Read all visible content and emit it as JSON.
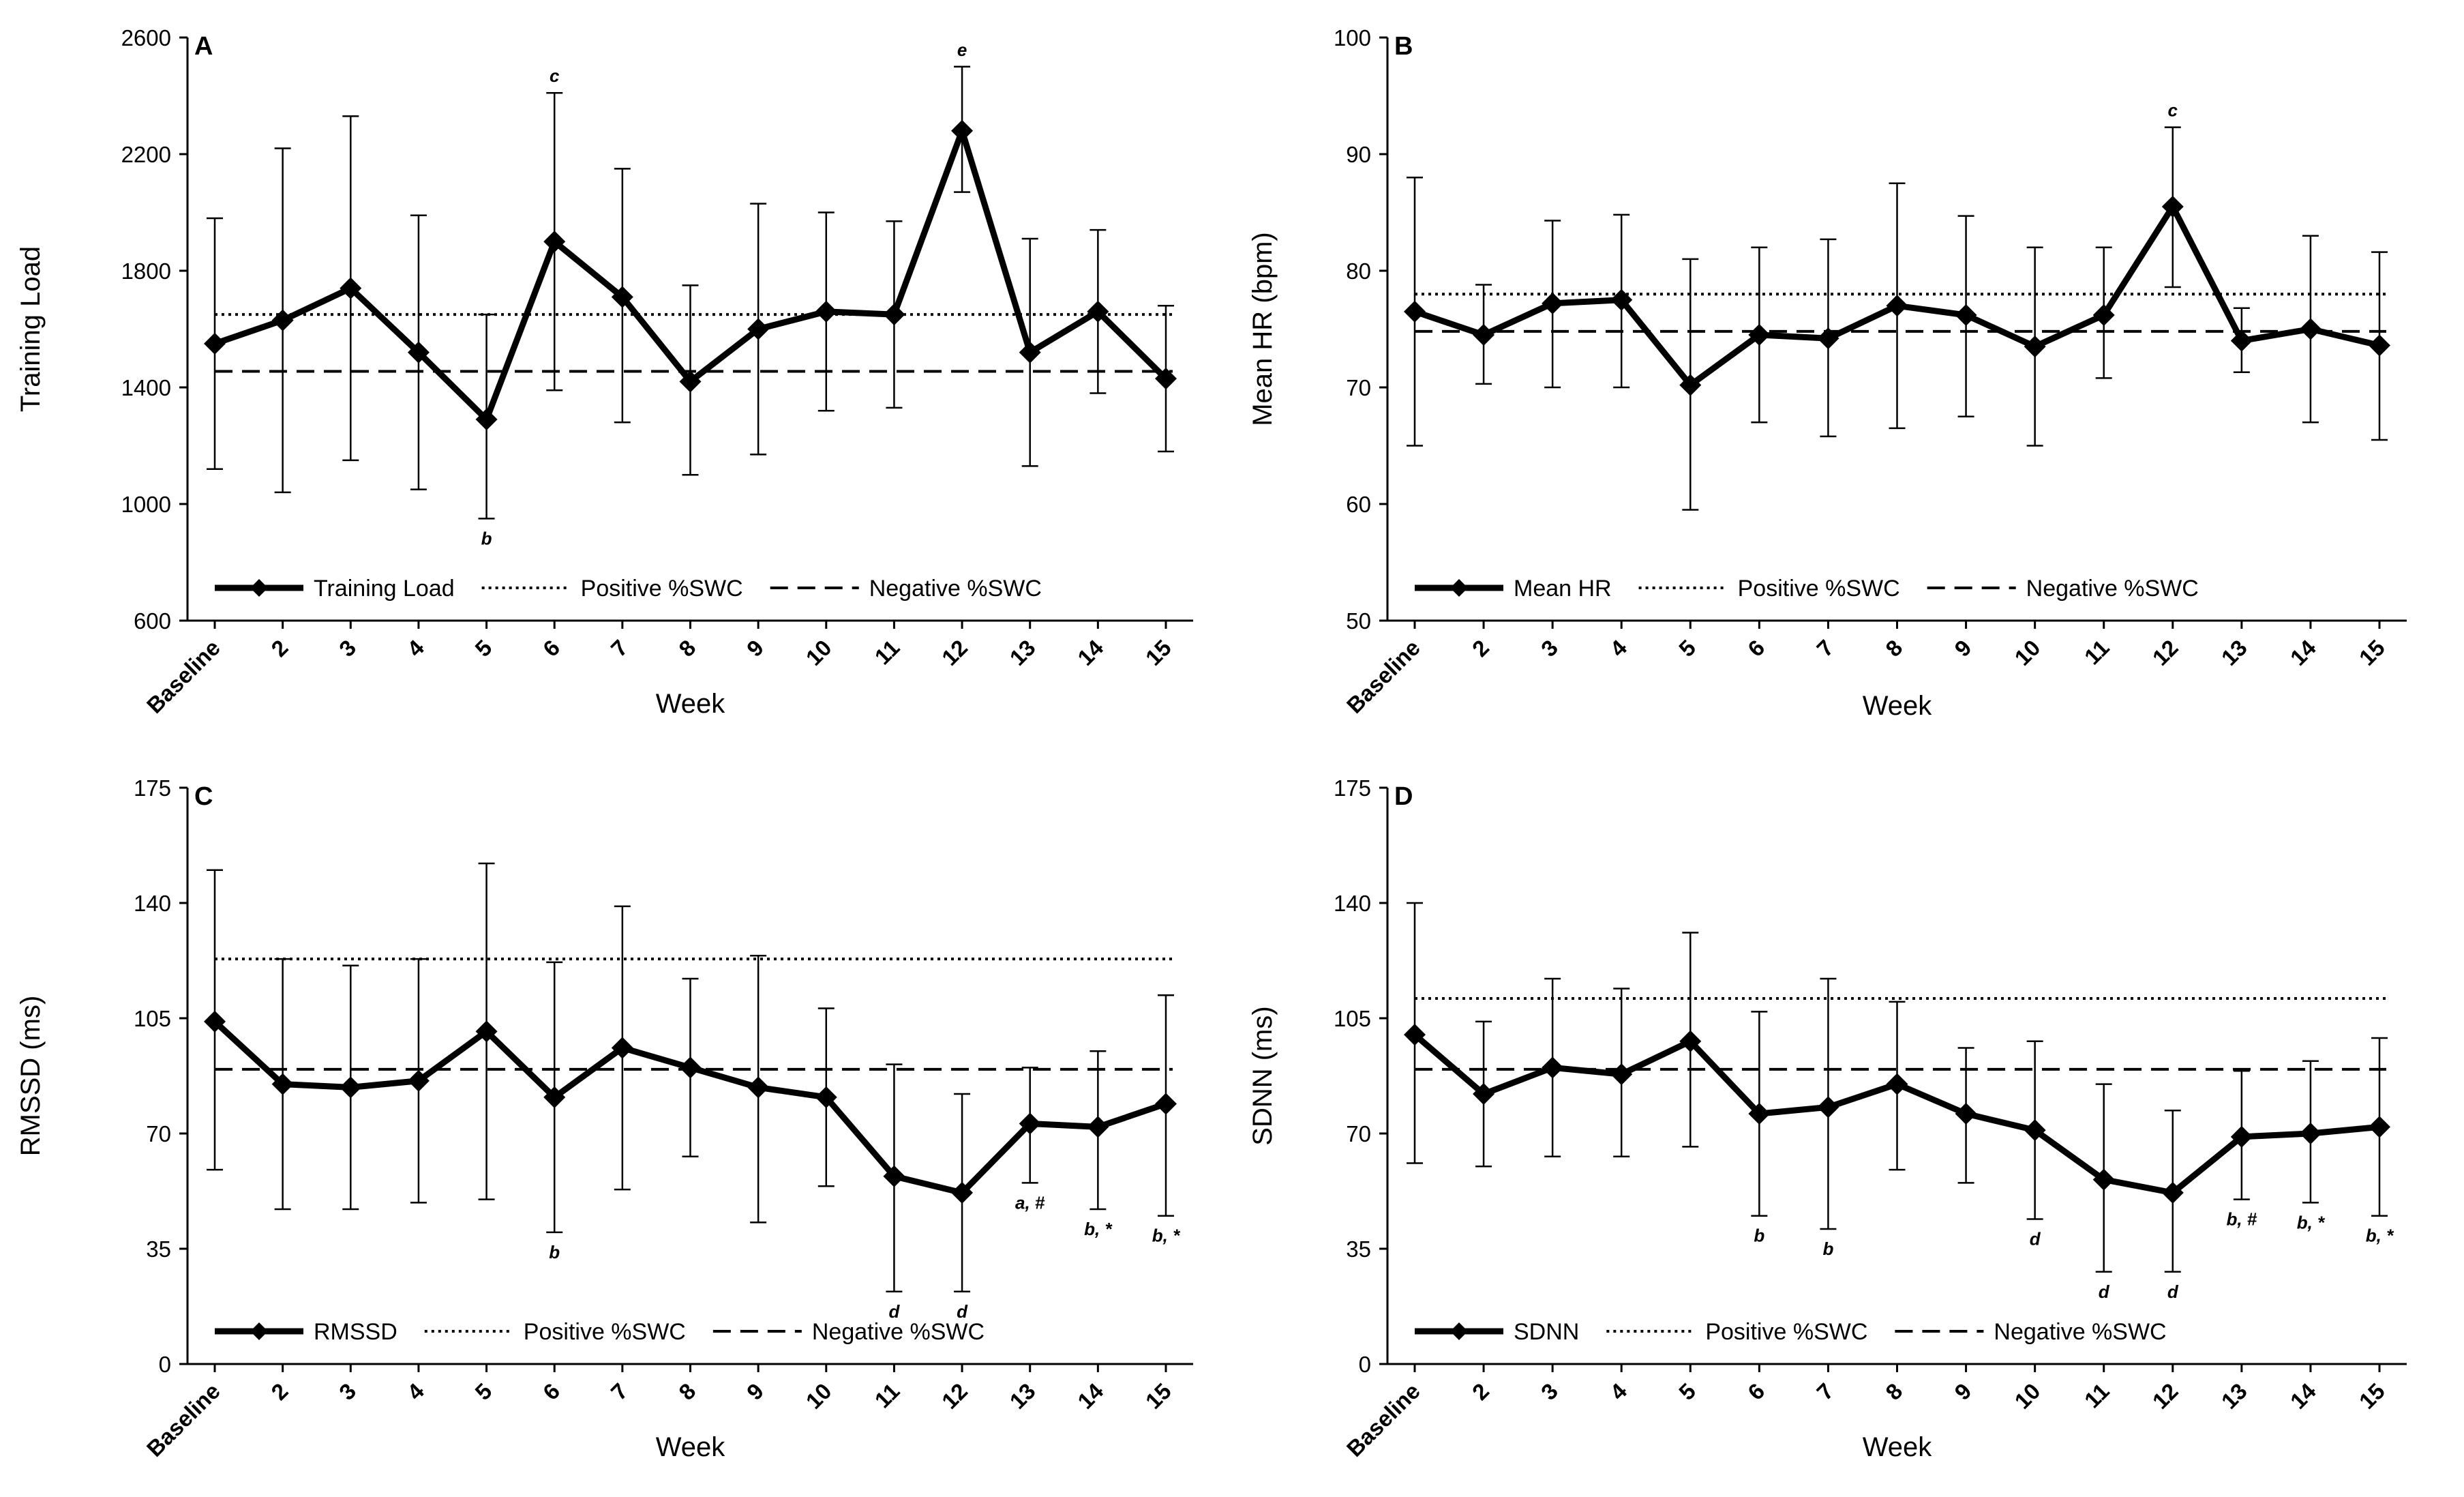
{
  "chart_data": [
    {
      "type": "line",
      "panel": "A",
      "xlabel": "Week",
      "ylabel": "Training Load",
      "ylim": [
        600,
        2600
      ],
      "yticks": [
        "600",
        "1000",
        "1400",
        "1800",
        "2200",
        "2600"
      ],
      "categories": [
        "Baseline",
        "2",
        "3",
        "4",
        "5",
        "6",
        "7",
        "8",
        "9",
        "10",
        "11",
        "12",
        "13",
        "14",
        "15"
      ],
      "series": [
        {
          "name": "Training Load",
          "values": [
            1550,
            1630,
            1740,
            1520,
            1290,
            1900,
            1710,
            1420,
            1600,
            1660,
            1650,
            2280,
            1520,
            1660,
            1430
          ],
          "error_low": [
            1120,
            1040,
            1150,
            1050,
            950,
            1390,
            1280,
            1100,
            1170,
            1320,
            1330,
            2070,
            1130,
            1380,
            1180
          ],
          "error_high": [
            1980,
            2220,
            2330,
            1990,
            1650,
            2410,
            2150,
            1750,
            2030,
            2000,
            1970,
            2500,
            1910,
            1940,
            1680
          ]
        }
      ],
      "reference_lines": [
        {
          "name": "Positive %SWC",
          "value": 1650,
          "style": "dotted"
        },
        {
          "name": "Negative %SWC",
          "value": 1455,
          "style": "dashed"
        }
      ],
      "legend": [
        "Training Load",
        "Positive %SWC",
        "Negative %SWC"
      ],
      "annotations": [
        {
          "category": "5",
          "text": "b",
          "position": "below"
        },
        {
          "category": "6",
          "text": "c",
          "position": "above"
        },
        {
          "category": "12",
          "text": "e",
          "position": "above"
        }
      ]
    },
    {
      "type": "line",
      "panel": "B",
      "xlabel": "Week",
      "ylabel": "Mean HR (bpm)",
      "ylim": [
        50,
        100
      ],
      "yticks": [
        "50",
        "60",
        "70",
        "80",
        "90",
        "100"
      ],
      "categories": [
        "Baseline",
        "2",
        "3",
        "4",
        "5",
        "6",
        "7",
        "8",
        "9",
        "10",
        "11",
        "12",
        "13",
        "14",
        "15"
      ],
      "series": [
        {
          "name": "Mean HR",
          "values": [
            76.5,
            74.5,
            77.2,
            77.5,
            70.2,
            74.5,
            74.2,
            77.0,
            76.2,
            73.5,
            76.2,
            85.5,
            74.0,
            75.0,
            73.6
          ],
          "error_low": [
            65.0,
            70.3,
            70.0,
            70.0,
            59.5,
            67.0,
            65.8,
            66.5,
            67.5,
            65.0,
            70.8,
            78.6,
            71.3,
            67.0,
            65.5
          ],
          "error_high": [
            88.0,
            78.8,
            84.3,
            84.8,
            81.0,
            82.0,
            82.7,
            87.5,
            84.7,
            82.0,
            82.0,
            92.3,
            76.8,
            83.0,
            81.6
          ]
        }
      ],
      "reference_lines": [
        {
          "name": "Positive %SWC",
          "value": 78.0,
          "style": "dotted"
        },
        {
          "name": "Negative %SWC",
          "value": 74.8,
          "style": "dashed"
        }
      ],
      "legend": [
        "Mean HR",
        "Positive %SWC",
        "Negative %SWC"
      ],
      "annotations": [
        {
          "category": "12",
          "text": "c",
          "position": "above"
        }
      ]
    },
    {
      "type": "line",
      "panel": "C",
      "xlabel": "Week",
      "ylabel": "RMSSD (ms)",
      "ylim": [
        0,
        175
      ],
      "yticks": [
        "0",
        "35",
        "70",
        "105",
        "140",
        "175"
      ],
      "categories": [
        "Baseline",
        "2",
        "3",
        "4",
        "5",
        "6",
        "7",
        "8",
        "9",
        "10",
        "11",
        "12",
        "13",
        "14",
        "15"
      ],
      "series": [
        {
          "name": "RMSSD",
          "values": [
            104,
            85,
            84,
            86,
            101,
            81,
            96,
            90,
            84,
            81,
            57,
            52,
            73,
            72,
            79
          ],
          "error_low": [
            59,
            47,
            47,
            49,
            50,
            40,
            53,
            63,
            43,
            54,
            22,
            22,
            55,
            47,
            45
          ],
          "error_high": [
            150,
            123,
            121,
            123,
            152,
            122,
            139,
            117,
            124,
            108,
            91,
            82,
            90,
            95,
            112
          ]
        }
      ],
      "reference_lines": [
        {
          "name": "Positive %SWC",
          "value": 123,
          "style": "dotted"
        },
        {
          "name": "Negative %SWC",
          "value": 89.5,
          "style": "dashed"
        }
      ],
      "legend": [
        "RMSSD",
        "Positive %SWC",
        "Negative %SWC"
      ],
      "annotations": [
        {
          "category": "6",
          "text": "b",
          "position": "below"
        },
        {
          "category": "11",
          "text": "d",
          "position": "below"
        },
        {
          "category": "12",
          "text": "d",
          "position": "below"
        },
        {
          "category": "13",
          "text": "a, #",
          "position": "below"
        },
        {
          "category": "14",
          "text": "b, *",
          "position": "below"
        },
        {
          "category": "15",
          "text": "b, *",
          "position": "below"
        }
      ]
    },
    {
      "type": "line",
      "panel": "D",
      "xlabel": "Week",
      "ylabel": "SDNN (ms)",
      "ylim": [
        0,
        175
      ],
      "yticks": [
        "0",
        "35",
        "70",
        "105",
        "140",
        "175"
      ],
      "categories": [
        "Baseline",
        "2",
        "3",
        "4",
        "5",
        "6",
        "7",
        "8",
        "9",
        "10",
        "11",
        "12",
        "13",
        "14",
        "15"
      ],
      "series": [
        {
          "name": "SDNN",
          "values": [
            100,
            82,
            90,
            88,
            98,
            76,
            78,
            85,
            76,
            71,
            56,
            52,
            69,
            70,
            72
          ],
          "error_low": [
            61,
            60,
            63,
            63,
            66,
            45,
            41,
            59,
            55,
            44,
            28,
            28,
            50,
            49,
            45
          ],
          "error_high": [
            140,
            104,
            117,
            114,
            131,
            107,
            117,
            110,
            96,
            98,
            85,
            77,
            89,
            92,
            99
          ]
        }
      ],
      "reference_lines": [
        {
          "name": "Positive %SWC",
          "value": 111,
          "style": "dotted"
        },
        {
          "name": "Negative %SWC",
          "value": 89.5,
          "style": "dashed"
        }
      ],
      "legend": [
        "SDNN",
        "Positive %SWC",
        "Negative %SWC"
      ],
      "annotations": [
        {
          "category": "6",
          "text": "b",
          "position": "below"
        },
        {
          "category": "7",
          "text": "b",
          "position": "below"
        },
        {
          "category": "10",
          "text": "d",
          "position": "below"
        },
        {
          "category": "11",
          "text": "d",
          "position": "below"
        },
        {
          "category": "12",
          "text": "d",
          "position": "below"
        },
        {
          "category": "13",
          "text": "b, #",
          "position": "below"
        },
        {
          "category": "14",
          "text": "b, *",
          "position": "below"
        },
        {
          "category": "15",
          "text": "b, *",
          "position": "below"
        }
      ]
    }
  ]
}
